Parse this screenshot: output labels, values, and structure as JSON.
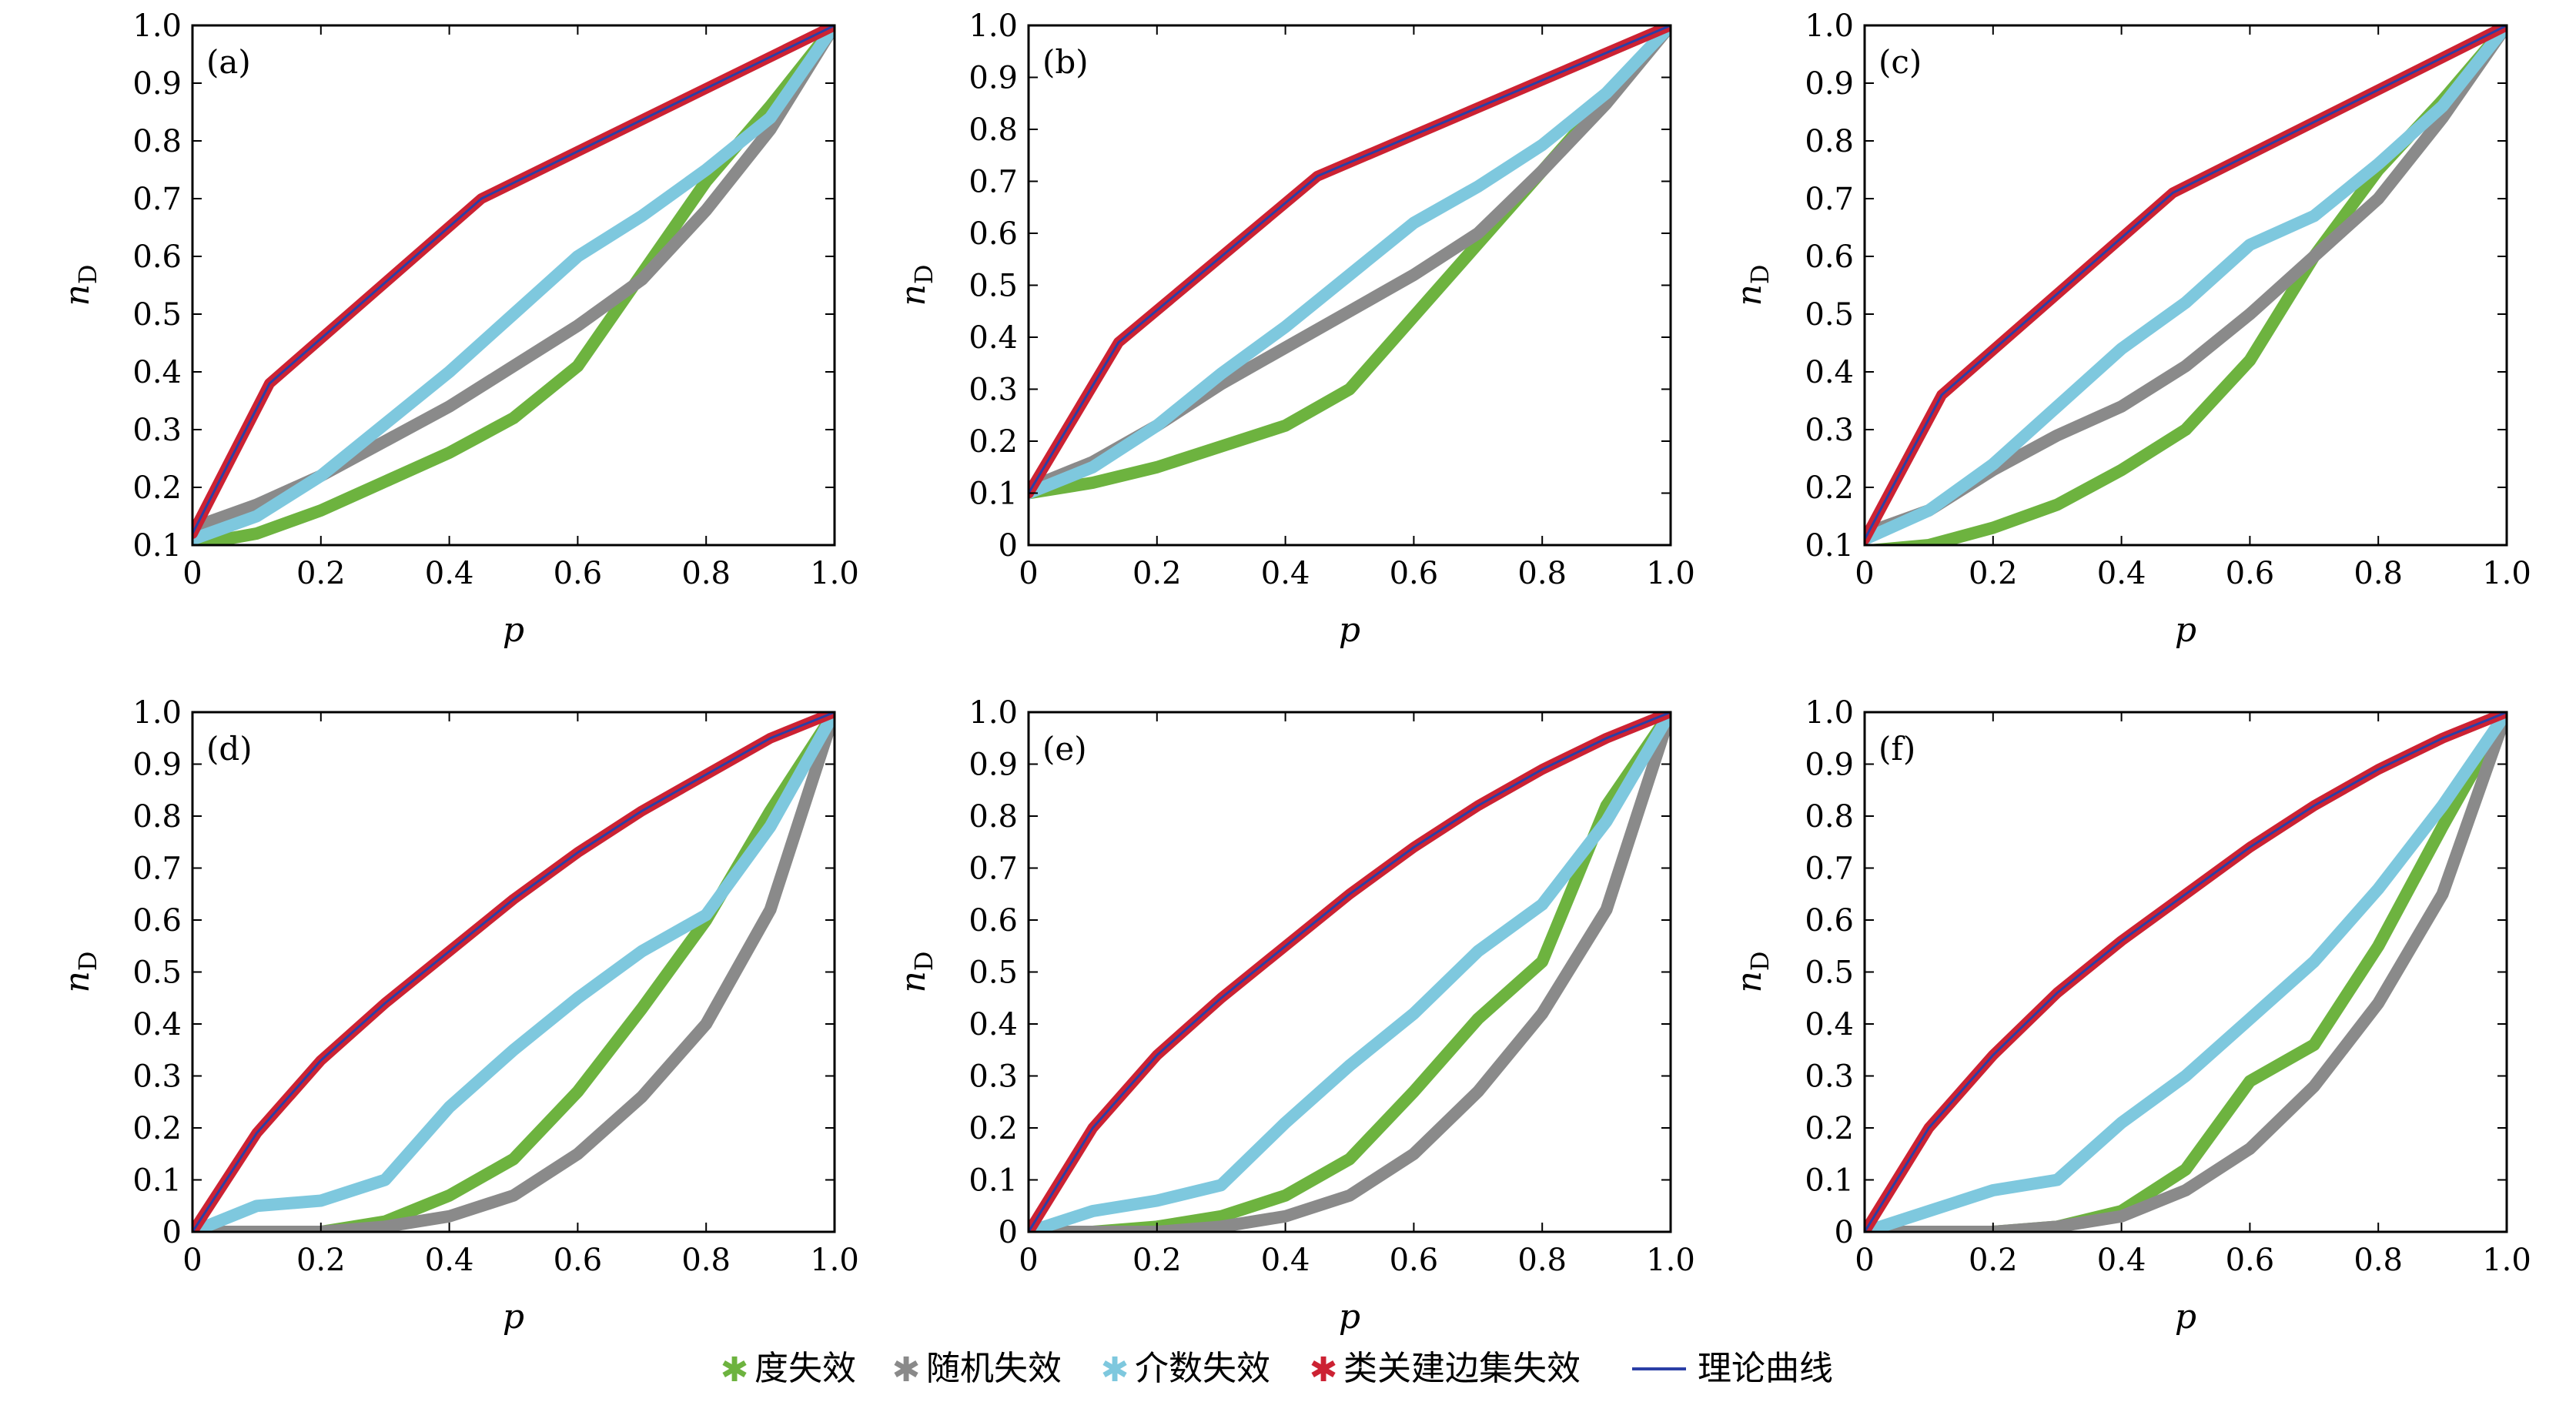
{
  "chart_data": [
    {
      "type": "line",
      "panel_label": "(a)",
      "xlabel": "p",
      "ylabel": "n",
      "ylabel_sub": "D",
      "xlim": [
        0,
        1.0
      ],
      "ylim": [
        0.1,
        1.0
      ],
      "xticks": [
        "0",
        "0.2",
        "0.4",
        "0.6",
        "0.8",
        "1.0"
      ],
      "yticks": [
        "0.1",
        "0.2",
        "0.3",
        "0.4",
        "0.5",
        "0.6",
        "0.7",
        "0.8",
        "0.9",
        "1.0"
      ],
      "series": [
        {
          "name": "度失效",
          "color": "#6db33f",
          "x": [
            0,
            0.1,
            0.2,
            0.3,
            0.4,
            0.5,
            0.6,
            0.7,
            0.8,
            0.9,
            1.0
          ],
          "y": [
            0.1,
            0.12,
            0.16,
            0.21,
            0.26,
            0.32,
            0.41,
            0.57,
            0.73,
            0.86,
            1.0
          ]
        },
        {
          "name": "随机失效",
          "color": "#8a8a8a",
          "x": [
            0,
            0.1,
            0.2,
            0.3,
            0.4,
            0.5,
            0.6,
            0.7,
            0.8,
            0.9,
            1.0
          ],
          "y": [
            0.13,
            0.17,
            0.22,
            0.28,
            0.34,
            0.41,
            0.48,
            0.56,
            0.68,
            0.82,
            1.0
          ]
        },
        {
          "name": "介数失效",
          "color": "#7ec8de",
          "x": [
            0,
            0.1,
            0.2,
            0.3,
            0.4,
            0.5,
            0.6,
            0.7,
            0.8,
            0.9,
            1.0
          ],
          "y": [
            0.11,
            0.15,
            0.22,
            0.31,
            0.4,
            0.5,
            0.6,
            0.67,
            0.75,
            0.84,
            1.0
          ]
        },
        {
          "name": "类关建边集失效",
          "color": "#cc2233",
          "x": [
            0,
            0.12,
            0.45,
            1.0
          ],
          "y": [
            0.12,
            0.38,
            0.7,
            1.0
          ]
        },
        {
          "name": "理论曲线",
          "color": "#2b3fa6",
          "x": [
            0,
            0.12,
            0.45,
            1.0
          ],
          "y": [
            0.12,
            0.38,
            0.7,
            1.0
          ]
        }
      ]
    },
    {
      "type": "line",
      "panel_label": "(b)",
      "xlabel": "p",
      "ylabel": "n",
      "ylabel_sub": "D",
      "xlim": [
        0,
        1.0
      ],
      "ylim": [
        0,
        1.0
      ],
      "xticks": [
        "0",
        "0.2",
        "0.4",
        "0.6",
        "0.8",
        "1.0"
      ],
      "yticks": [
        "0",
        "0.1",
        "0.2",
        "0.3",
        "0.4",
        "0.5",
        "0.6",
        "0.7",
        "0.8",
        "0.9",
        "1.0"
      ],
      "series": [
        {
          "name": "度失效",
          "color": "#6db33f",
          "x": [
            0,
            0.1,
            0.2,
            0.3,
            0.4,
            0.5,
            0.6,
            0.7,
            0.8,
            0.9,
            1.0
          ],
          "y": [
            0.1,
            0.12,
            0.15,
            0.19,
            0.23,
            0.3,
            0.44,
            0.58,
            0.72,
            0.86,
            1.0
          ]
        },
        {
          "name": "随机失效",
          "color": "#8a8a8a",
          "x": [
            0,
            0.1,
            0.2,
            0.3,
            0.4,
            0.5,
            0.6,
            0.7,
            0.8,
            0.9,
            1.0
          ],
          "y": [
            0.11,
            0.16,
            0.23,
            0.31,
            0.38,
            0.45,
            0.52,
            0.6,
            0.72,
            0.85,
            1.0
          ]
        },
        {
          "name": "介数失效",
          "color": "#7ec8de",
          "x": [
            0,
            0.1,
            0.2,
            0.3,
            0.4,
            0.5,
            0.6,
            0.7,
            0.8,
            0.9,
            1.0
          ],
          "y": [
            0.1,
            0.15,
            0.23,
            0.33,
            0.42,
            0.52,
            0.62,
            0.69,
            0.77,
            0.87,
            1.0
          ]
        },
        {
          "name": "类关建边集失效",
          "color": "#cc2233",
          "x": [
            0,
            0.14,
            0.45,
            1.0
          ],
          "y": [
            0.1,
            0.39,
            0.71,
            1.0
          ]
        },
        {
          "name": "理论曲线",
          "color": "#2b3fa6",
          "x": [
            0,
            0.14,
            0.45,
            1.0
          ],
          "y": [
            0.1,
            0.39,
            0.71,
            1.0
          ]
        }
      ]
    },
    {
      "type": "line",
      "panel_label": "(c)",
      "xlabel": "p",
      "ylabel": "n",
      "ylabel_sub": "D",
      "xlim": [
        0,
        1.0
      ],
      "ylim": [
        0.1,
        1.0
      ],
      "xticks": [
        "0",
        "0.2",
        "0.4",
        "0.6",
        "0.8",
        "1.0"
      ],
      "yticks": [
        "0.1",
        "0.2",
        "0.3",
        "0.4",
        "0.5",
        "0.6",
        "0.7",
        "0.8",
        "0.9",
        "1.0"
      ],
      "series": [
        {
          "name": "度失效",
          "color": "#6db33f",
          "x": [
            0,
            0.1,
            0.2,
            0.3,
            0.4,
            0.5,
            0.6,
            0.7,
            0.8,
            0.9,
            1.0
          ],
          "y": [
            0.09,
            0.1,
            0.13,
            0.17,
            0.23,
            0.3,
            0.42,
            0.6,
            0.75,
            0.87,
            1.0
          ]
        },
        {
          "name": "随机失效",
          "color": "#8a8a8a",
          "x": [
            0,
            0.1,
            0.2,
            0.3,
            0.4,
            0.5,
            0.6,
            0.7,
            0.8,
            0.9,
            1.0
          ],
          "y": [
            0.12,
            0.16,
            0.23,
            0.29,
            0.34,
            0.41,
            0.5,
            0.6,
            0.7,
            0.84,
            1.0
          ]
        },
        {
          "name": "介数失效",
          "color": "#7ec8de",
          "x": [
            0,
            0.1,
            0.2,
            0.3,
            0.4,
            0.5,
            0.6,
            0.7,
            0.8,
            0.9,
            1.0
          ],
          "y": [
            0.11,
            0.16,
            0.24,
            0.34,
            0.44,
            0.52,
            0.62,
            0.67,
            0.76,
            0.86,
            1.0
          ]
        },
        {
          "name": "类关建边集失效",
          "color": "#cc2233",
          "x": [
            0,
            0.12,
            0.48,
            1.0
          ],
          "y": [
            0.11,
            0.36,
            0.71,
            1.0
          ]
        },
        {
          "name": "理论曲线",
          "color": "#2b3fa6",
          "x": [
            0,
            0.12,
            0.48,
            1.0
          ],
          "y": [
            0.11,
            0.36,
            0.71,
            1.0
          ]
        }
      ]
    },
    {
      "type": "line",
      "panel_label": "(d)",
      "xlabel": "p",
      "ylabel": "n",
      "ylabel_sub": "D",
      "xlim": [
        0,
        1.0
      ],
      "ylim": [
        0,
        1.0
      ],
      "xticks": [
        "0",
        "0.2",
        "0.4",
        "0.6",
        "0.8",
        "1.0"
      ],
      "yticks": [
        "0",
        "0.1",
        "0.2",
        "0.3",
        "0.4",
        "0.5",
        "0.6",
        "0.7",
        "0.8",
        "0.9",
        "1.0"
      ],
      "series": [
        {
          "name": "度失效",
          "color": "#6db33f",
          "x": [
            0,
            0.1,
            0.2,
            0.3,
            0.4,
            0.5,
            0.6,
            0.7,
            0.8,
            0.9,
            1.0
          ],
          "y": [
            0,
            0,
            0,
            0.02,
            0.07,
            0.14,
            0.27,
            0.43,
            0.6,
            0.81,
            1.0
          ]
        },
        {
          "name": "随机失效",
          "color": "#8a8a8a",
          "x": [
            0,
            0.1,
            0.2,
            0.3,
            0.4,
            0.5,
            0.6,
            0.7,
            0.8,
            0.9,
            1.0
          ],
          "y": [
            0,
            0,
            0,
            0.01,
            0.03,
            0.07,
            0.15,
            0.26,
            0.4,
            0.62,
            1.0
          ]
        },
        {
          "name": "介数失效",
          "color": "#7ec8de",
          "x": [
            0,
            0.1,
            0.2,
            0.3,
            0.4,
            0.5,
            0.6,
            0.7,
            0.8,
            0.9,
            1.0
          ],
          "y": [
            0,
            0.05,
            0.06,
            0.1,
            0.24,
            0.35,
            0.45,
            0.54,
            0.61,
            0.78,
            1.0
          ]
        },
        {
          "name": "类关建边集失效",
          "color": "#cc2233",
          "x": [
            0,
            0.1,
            0.2,
            0.3,
            0.4,
            0.5,
            0.6,
            0.7,
            0.8,
            0.9,
            1.0
          ],
          "y": [
            0,
            0.19,
            0.33,
            0.44,
            0.54,
            0.64,
            0.73,
            0.81,
            0.88,
            0.95,
            1.0
          ]
        },
        {
          "name": "理论曲线",
          "color": "#2b3fa6",
          "x": [
            0,
            0.1,
            0.2,
            0.3,
            0.4,
            0.5,
            0.6,
            0.7,
            0.8,
            0.9,
            1.0
          ],
          "y": [
            0,
            0.19,
            0.33,
            0.44,
            0.54,
            0.64,
            0.73,
            0.81,
            0.88,
            0.95,
            1.0
          ]
        }
      ]
    },
    {
      "type": "line",
      "panel_label": "(e)",
      "xlabel": "p",
      "ylabel": "n",
      "ylabel_sub": "D",
      "xlim": [
        0,
        1.0
      ],
      "ylim": [
        0,
        1.0
      ],
      "xticks": [
        "0",
        "0.2",
        "0.4",
        "0.6",
        "0.8",
        "1.0"
      ],
      "yticks": [
        "0",
        "0.1",
        "0.2",
        "0.3",
        "0.4",
        "0.5",
        "0.6",
        "0.7",
        "0.8",
        "0.9",
        "1.0"
      ],
      "series": [
        {
          "name": "度失效",
          "color": "#6db33f",
          "x": [
            0,
            0.1,
            0.2,
            0.3,
            0.4,
            0.5,
            0.6,
            0.7,
            0.8,
            0.9,
            1.0
          ],
          "y": [
            0,
            0,
            0.01,
            0.03,
            0.07,
            0.14,
            0.27,
            0.41,
            0.52,
            0.82,
            1.0
          ]
        },
        {
          "name": "随机失效",
          "color": "#8a8a8a",
          "x": [
            0,
            0.1,
            0.2,
            0.3,
            0.4,
            0.5,
            0.6,
            0.7,
            0.8,
            0.9,
            1.0
          ],
          "y": [
            0,
            0,
            0,
            0.01,
            0.03,
            0.07,
            0.15,
            0.27,
            0.42,
            0.62,
            1.0
          ]
        },
        {
          "name": "介数失效",
          "color": "#7ec8de",
          "x": [
            0,
            0.1,
            0.2,
            0.3,
            0.4,
            0.5,
            0.6,
            0.7,
            0.8,
            0.9,
            1.0
          ],
          "y": [
            0,
            0.04,
            0.06,
            0.09,
            0.21,
            0.32,
            0.42,
            0.54,
            0.63,
            0.79,
            1.0
          ]
        },
        {
          "name": "类关建边集失效",
          "color": "#cc2233",
          "x": [
            0,
            0.1,
            0.2,
            0.3,
            0.4,
            0.5,
            0.6,
            0.7,
            0.8,
            0.9,
            1.0
          ],
          "y": [
            0,
            0.2,
            0.34,
            0.45,
            0.55,
            0.65,
            0.74,
            0.82,
            0.89,
            0.95,
            1.0
          ]
        },
        {
          "name": "理论曲线",
          "color": "#2b3fa6",
          "x": [
            0,
            0.1,
            0.2,
            0.3,
            0.4,
            0.5,
            0.6,
            0.7,
            0.8,
            0.9,
            1.0
          ],
          "y": [
            0,
            0.2,
            0.34,
            0.45,
            0.55,
            0.65,
            0.74,
            0.82,
            0.89,
            0.95,
            1.0
          ]
        }
      ]
    },
    {
      "type": "line",
      "panel_label": "(f)",
      "xlabel": "p",
      "ylabel": "n",
      "ylabel_sub": "D",
      "xlim": [
        0,
        1.0
      ],
      "ylim": [
        0,
        1.0
      ],
      "xticks": [
        "0",
        "0.2",
        "0.4",
        "0.6",
        "0.8",
        "1.0"
      ],
      "yticks": [
        "0",
        "0.1",
        "0.2",
        "0.3",
        "0.4",
        "0.5",
        "0.6",
        "0.7",
        "0.8",
        "0.9",
        "1.0"
      ],
      "series": [
        {
          "name": "度失效",
          "color": "#6db33f",
          "x": [
            0,
            0.1,
            0.2,
            0.3,
            0.4,
            0.5,
            0.6,
            0.7,
            0.8,
            0.9,
            1.0
          ],
          "y": [
            0,
            0,
            0,
            0.01,
            0.04,
            0.12,
            0.29,
            0.36,
            0.55,
            0.78,
            1.0
          ]
        },
        {
          "name": "随机失效",
          "color": "#8a8a8a",
          "x": [
            0,
            0.1,
            0.2,
            0.3,
            0.4,
            0.5,
            0.6,
            0.7,
            0.8,
            0.9,
            1.0
          ],
          "y": [
            0,
            0,
            0,
            0.01,
            0.03,
            0.08,
            0.16,
            0.28,
            0.44,
            0.65,
            1.0
          ]
        },
        {
          "name": "介数失效",
          "color": "#7ec8de",
          "x": [
            0,
            0.1,
            0.2,
            0.3,
            0.4,
            0.5,
            0.6,
            0.7,
            0.8,
            0.9,
            1.0
          ],
          "y": [
            0,
            0.04,
            0.08,
            0.1,
            0.21,
            0.3,
            0.41,
            0.52,
            0.66,
            0.82,
            1.0
          ]
        },
        {
          "name": "类关建边集失效",
          "color": "#cc2233",
          "x": [
            0,
            0.1,
            0.2,
            0.3,
            0.4,
            0.5,
            0.6,
            0.7,
            0.8,
            0.9,
            1.0
          ],
          "y": [
            0,
            0.2,
            0.34,
            0.46,
            0.56,
            0.65,
            0.74,
            0.82,
            0.89,
            0.95,
            1.0
          ]
        },
        {
          "name": "理论曲线",
          "color": "#2b3fa6",
          "x": [
            0,
            0.1,
            0.2,
            0.3,
            0.4,
            0.5,
            0.6,
            0.7,
            0.8,
            0.9,
            1.0
          ],
          "y": [
            0,
            0.2,
            0.34,
            0.46,
            0.56,
            0.65,
            0.74,
            0.82,
            0.89,
            0.95,
            1.0
          ]
        }
      ]
    }
  ],
  "legend": {
    "placement": "bottom-center",
    "items": [
      {
        "label": "度失效",
        "color": "#6db33f",
        "marker": "star"
      },
      {
        "label": "随机失效",
        "color": "#8a8a8a",
        "marker": "star"
      },
      {
        "label": "介数失效",
        "color": "#7ec8de",
        "marker": "star"
      },
      {
        "label": "类关建边集失效",
        "color": "#cc2233",
        "marker": "star"
      },
      {
        "label": "理论曲线",
        "color": "#2b3fa6",
        "marker": "line"
      }
    ]
  }
}
